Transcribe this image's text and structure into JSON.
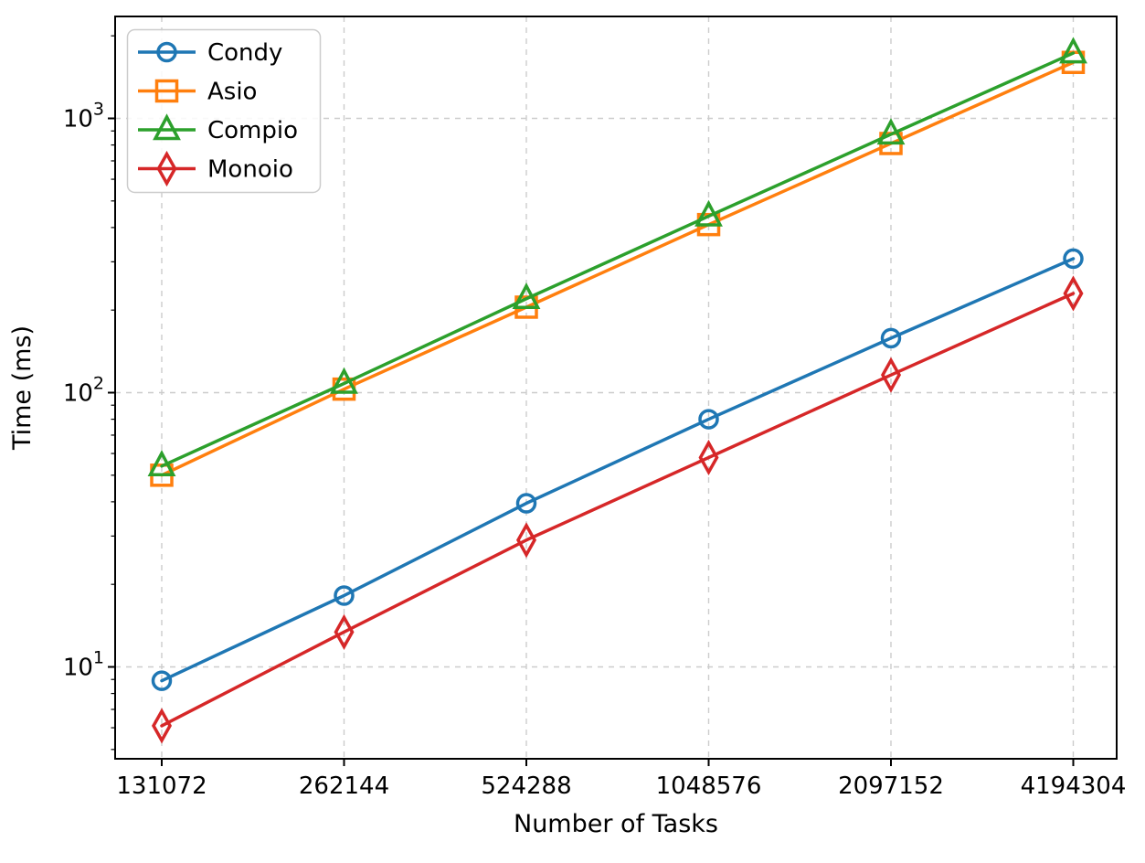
{
  "figure": {
    "background": "#ffffff"
  },
  "chart_data": {
    "type": "line",
    "title": "",
    "xlabel": "Number of Tasks",
    "ylabel": "Time (ms)",
    "x_scale": "categorical (tasks doubling each step)",
    "y_scale": "log10",
    "categories": [
      "131072",
      "262144",
      "524288",
      "1048576",
      "2097152",
      "4194304"
    ],
    "y_tick_exponents": [
      1,
      2,
      3
    ],
    "y_tick_labels": [
      "10¹",
      "10²",
      "10³"
    ],
    "ylim": [
      4.6,
      2350
    ],
    "grid": {
      "show": true,
      "style": "dashed",
      "color": "#cccccc"
    },
    "spine_color": "#000000",
    "legend": {
      "position": "upper-left",
      "entries": [
        "Condy",
        "Asio",
        "Compio",
        "Monoio"
      ]
    },
    "series": [
      {
        "name": "Condy",
        "color": "#1f77b4",
        "marker": "circle",
        "values": [
          8.9,
          18.2,
          39.5,
          80,
          158,
          308
        ]
      },
      {
        "name": "Asio",
        "color": "#ff7f0e",
        "marker": "square",
        "values": [
          50,
          103,
          205,
          410,
          810,
          1600
        ]
      },
      {
        "name": "Compio",
        "color": "#2ca02c",
        "marker": "triangle",
        "values": [
          54,
          108,
          220,
          440,
          875,
          1730
        ]
      },
      {
        "name": "Monoio",
        "color": "#d62728",
        "marker": "diamond",
        "values": [
          6.1,
          13.4,
          29,
          58,
          116,
          230
        ]
      }
    ]
  }
}
